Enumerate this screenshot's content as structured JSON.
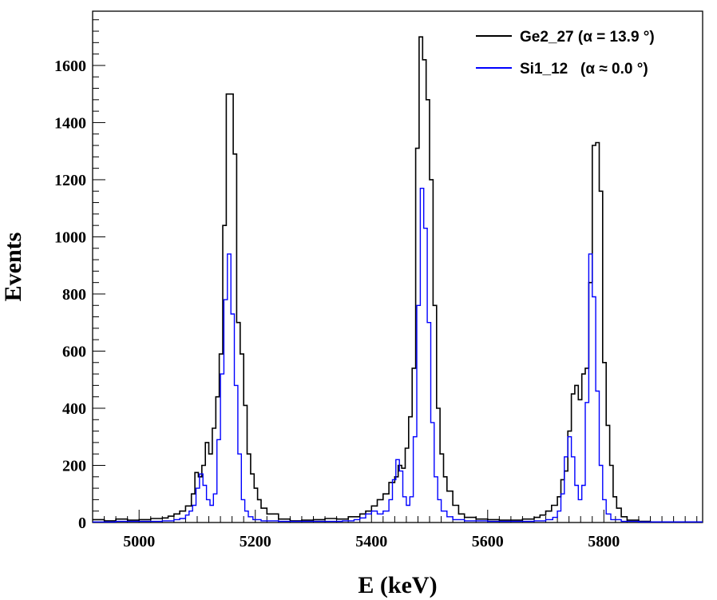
{
  "chart_data": {
    "type": "line",
    "style": "step-histogram",
    "xlabel": "E (keV)",
    "ylabel": "Events",
    "xlim": [
      4920,
      5970
    ],
    "ylim": [
      0,
      1790
    ],
    "x_major_ticks": [
      5000,
      5200,
      5400,
      5600,
      5800
    ],
    "x_tick_labels": [
      "5000",
      "5200",
      "5400",
      "5600",
      "5800"
    ],
    "y_major_ticks": [
      0,
      200,
      400,
      600,
      800,
      1000,
      1200,
      1400,
      1600
    ],
    "y_tick_labels": [
      "0",
      "200",
      "400",
      "600",
      "800",
      "1000",
      "1200",
      "1400",
      "1600"
    ],
    "grid": false,
    "legend_position": "top-right",
    "series": [
      {
        "name": "Ge2_27 (α = 13.9 °)",
        "color": "#000000",
        "points": [
          [
            4920,
            10
          ],
          [
            4940,
            6
          ],
          [
            4960,
            12
          ],
          [
            4980,
            8
          ],
          [
            5000,
            10
          ],
          [
            5020,
            14
          ],
          [
            5040,
            16
          ],
          [
            5050,
            22
          ],
          [
            5060,
            30
          ],
          [
            5070,
            40
          ],
          [
            5080,
            58
          ],
          [
            5090,
            100
          ],
          [
            5096,
            175
          ],
          [
            5102,
            160
          ],
          [
            5108,
            200
          ],
          [
            5114,
            280
          ],
          [
            5120,
            240
          ],
          [
            5126,
            330
          ],
          [
            5132,
            440
          ],
          [
            5138,
            590
          ],
          [
            5144,
            1040
          ],
          [
            5150,
            1500
          ],
          [
            5156,
            1500
          ],
          [
            5162,
            1290
          ],
          [
            5168,
            700
          ],
          [
            5174,
            590
          ],
          [
            5180,
            410
          ],
          [
            5186,
            240
          ],
          [
            5192,
            170
          ],
          [
            5198,
            120
          ],
          [
            5204,
            80
          ],
          [
            5210,
            50
          ],
          [
            5220,
            30
          ],
          [
            5240,
            12
          ],
          [
            5260,
            6
          ],
          [
            5280,
            8
          ],
          [
            5300,
            10
          ],
          [
            5320,
            14
          ],
          [
            5340,
            12
          ],
          [
            5360,
            20
          ],
          [
            5380,
            30
          ],
          [
            5390,
            40
          ],
          [
            5400,
            58
          ],
          [
            5410,
            80
          ],
          [
            5420,
            100
          ],
          [
            5430,
            140
          ],
          [
            5440,
            160
          ],
          [
            5446,
            200
          ],
          [
            5452,
            190
          ],
          [
            5458,
            260
          ],
          [
            5464,
            370
          ],
          [
            5470,
            540
          ],
          [
            5476,
            1310
          ],
          [
            5482,
            1700
          ],
          [
            5488,
            1620
          ],
          [
            5494,
            1480
          ],
          [
            5500,
            1200
          ],
          [
            5506,
            760
          ],
          [
            5512,
            400
          ],
          [
            5518,
            240
          ],
          [
            5524,
            160
          ],
          [
            5530,
            110
          ],
          [
            5540,
            60
          ],
          [
            5550,
            30
          ],
          [
            5560,
            18
          ],
          [
            5580,
            12
          ],
          [
            5600,
            10
          ],
          [
            5620,
            8
          ],
          [
            5640,
            8
          ],
          [
            5660,
            12
          ],
          [
            5680,
            18
          ],
          [
            5690,
            26
          ],
          [
            5700,
            40
          ],
          [
            5710,
            60
          ],
          [
            5720,
            90
          ],
          [
            5726,
            150
          ],
          [
            5732,
            180
          ],
          [
            5738,
            320
          ],
          [
            5744,
            450
          ],
          [
            5750,
            480
          ],
          [
            5756,
            430
          ],
          [
            5762,
            520
          ],
          [
            5768,
            540
          ],
          [
            5774,
            840
          ],
          [
            5780,
            1320
          ],
          [
            5786,
            1330
          ],
          [
            5792,
            1160
          ],
          [
            5798,
            560
          ],
          [
            5804,
            340
          ],
          [
            5810,
            200
          ],
          [
            5816,
            90
          ],
          [
            5822,
            50
          ],
          [
            5830,
            20
          ],
          [
            5840,
            8
          ],
          [
            5860,
            4
          ],
          [
            5880,
            2
          ],
          [
            5900,
            2
          ],
          [
            5920,
            2
          ],
          [
            5940,
            2
          ],
          [
            5960,
            2
          ],
          [
            5970,
            2
          ]
        ]
      },
      {
        "name": "Si1_12   (α ≈ 0.0 °)",
        "color": "#0000ff",
        "points": [
          [
            4920,
            2
          ],
          [
            4960,
            4
          ],
          [
            5000,
            4
          ],
          [
            5040,
            6
          ],
          [
            5060,
            10
          ],
          [
            5070,
            14
          ],
          [
            5080,
            26
          ],
          [
            5086,
            40
          ],
          [
            5092,
            60
          ],
          [
            5098,
            120
          ],
          [
            5104,
            170
          ],
          [
            5110,
            130
          ],
          [
            5116,
            80
          ],
          [
            5122,
            60
          ],
          [
            5128,
            100
          ],
          [
            5134,
            290
          ],
          [
            5140,
            520
          ],
          [
            5146,
            780
          ],
          [
            5152,
            940
          ],
          [
            5158,
            730
          ],
          [
            5164,
            480
          ],
          [
            5170,
            240
          ],
          [
            5176,
            80
          ],
          [
            5182,
            40
          ],
          [
            5188,
            20
          ],
          [
            5196,
            10
          ],
          [
            5210,
            6
          ],
          [
            5240,
            4
          ],
          [
            5280,
            4
          ],
          [
            5320,
            4
          ],
          [
            5350,
            6
          ],
          [
            5370,
            10
          ],
          [
            5380,
            16
          ],
          [
            5390,
            30
          ],
          [
            5400,
            40
          ],
          [
            5410,
            30
          ],
          [
            5420,
            40
          ],
          [
            5430,
            80
          ],
          [
            5436,
            150
          ],
          [
            5442,
            220
          ],
          [
            5448,
            180
          ],
          [
            5454,
            90
          ],
          [
            5460,
            60
          ],
          [
            5466,
            90
          ],
          [
            5472,
            300
          ],
          [
            5478,
            760
          ],
          [
            5484,
            1170
          ],
          [
            5490,
            1030
          ],
          [
            5496,
            700
          ],
          [
            5502,
            350
          ],
          [
            5508,
            160
          ],
          [
            5514,
            80
          ],
          [
            5520,
            40
          ],
          [
            5530,
            20
          ],
          [
            5540,
            10
          ],
          [
            5560,
            6
          ],
          [
            5600,
            4
          ],
          [
            5640,
            4
          ],
          [
            5680,
            6
          ],
          [
            5700,
            10
          ],
          [
            5712,
            18
          ],
          [
            5720,
            40
          ],
          [
            5726,
            100
          ],
          [
            5732,
            230
          ],
          [
            5738,
            300
          ],
          [
            5744,
            230
          ],
          [
            5750,
            130
          ],
          [
            5756,
            80
          ],
          [
            5762,
            130
          ],
          [
            5768,
            420
          ],
          [
            5774,
            940
          ],
          [
            5780,
            790
          ],
          [
            5786,
            460
          ],
          [
            5792,
            200
          ],
          [
            5798,
            80
          ],
          [
            5804,
            30
          ],
          [
            5812,
            10
          ],
          [
            5830,
            4
          ],
          [
            5860,
            2
          ],
          [
            5900,
            2
          ],
          [
            5970,
            2
          ]
        ]
      }
    ]
  }
}
